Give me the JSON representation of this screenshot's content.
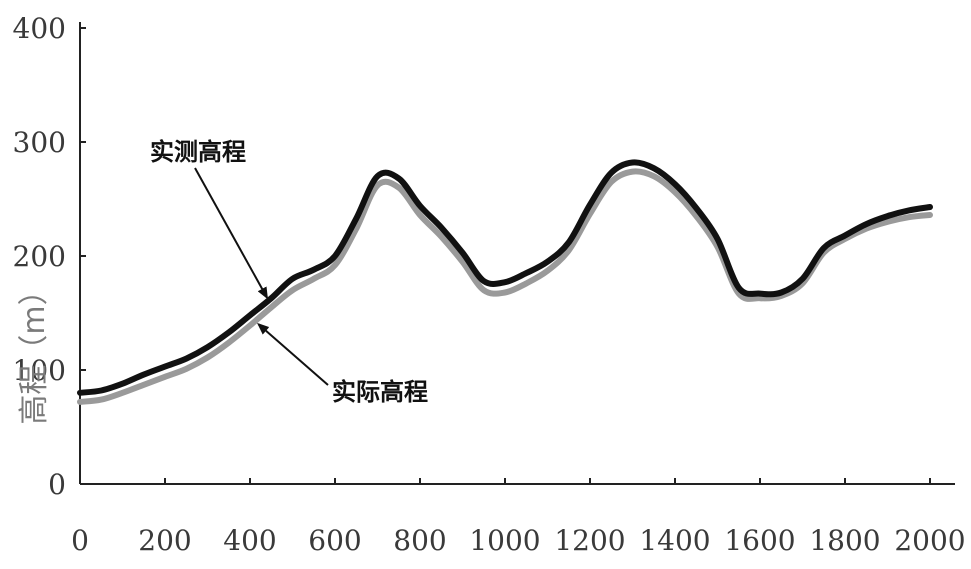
{
  "chart_data": {
    "type": "line",
    "title": "",
    "xlabel": "",
    "ylabel": "高程（m）",
    "xlim": [
      0,
      2100
    ],
    "ylim": [
      0,
      400
    ],
    "x_ticks": [
      0,
      200,
      400,
      600,
      800,
      1000,
      1200,
      1400,
      1600,
      1800,
      2000
    ],
    "y_ticks": [
      0,
      100,
      200,
      300,
      400
    ],
    "grid": false,
    "legend": "none",
    "series": [
      {
        "name": "实测高程",
        "color": "#111111",
        "x": [
          0,
          50,
          100,
          150,
          200,
          250,
          300,
          350,
          400,
          450,
          500,
          550,
          600,
          650,
          700,
          750,
          800,
          850,
          900,
          950,
          1000,
          1050,
          1100,
          1150,
          1200,
          1250,
          1300,
          1350,
          1400,
          1450,
          1500,
          1550,
          1600,
          1650,
          1700,
          1750,
          1800,
          1850,
          1900,
          1950,
          2000
        ],
        "y": [
          80,
          82,
          88,
          96,
          103,
          110,
          120,
          133,
          148,
          163,
          180,
          188,
          200,
          233,
          270,
          268,
          244,
          225,
          203,
          178,
          177,
          185,
          195,
          212,
          245,
          273,
          282,
          277,
          263,
          242,
          215,
          172,
          167,
          168,
          180,
          207,
          218,
          228,
          235,
          240,
          243
        ]
      },
      {
        "name": "实际高程",
        "color": "#9a9a9a",
        "x": [
          0,
          50,
          100,
          150,
          200,
          250,
          300,
          350,
          400,
          450,
          500,
          550,
          600,
          650,
          700,
          750,
          800,
          850,
          900,
          950,
          1000,
          1050,
          1100,
          1150,
          1200,
          1250,
          1300,
          1350,
          1400,
          1450,
          1500,
          1550,
          1600,
          1650,
          1700,
          1750,
          1800,
          1850,
          1900,
          1950,
          2000
        ],
        "y": [
          72,
          74,
          80,
          87,
          94,
          101,
          111,
          124,
          139,
          155,
          170,
          180,
          192,
          224,
          262,
          260,
          236,
          217,
          195,
          170,
          168,
          176,
          187,
          205,
          237,
          265,
          274,
          270,
          256,
          235,
          208,
          167,
          163,
          165,
          176,
          203,
          215,
          224,
          230,
          234,
          236
        ]
      }
    ],
    "annotations": [
      {
        "text": "实测高程",
        "series": 0,
        "arrow_to_x": 440
      },
      {
        "text": "实际高程",
        "series": 1,
        "arrow_to_x": 420
      }
    ]
  }
}
